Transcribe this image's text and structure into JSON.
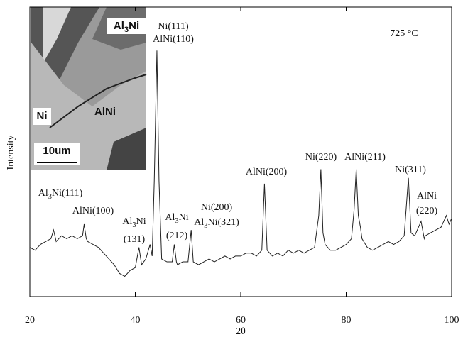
{
  "chart_data": {
    "type": "line",
    "x_label": "2θ",
    "y_label": "Intensity",
    "xlim": [
      20,
      100
    ],
    "xticks": [
      20,
      40,
      60,
      80,
      100
    ],
    "ylim": [
      0,
      100
    ],
    "color": "#222222",
    "annotations": [
      "Al3Ni(111)",
      "AlNi(100)",
      "Al3Ni",
      "(131)",
      "Ni(111)",
      "AlNi(110)",
      "Al3Ni",
      "(212)",
      "Ni(200)",
      "Al3Ni(321)",
      "AlNi(200)",
      "Ni(220)",
      "AlNi(211)",
      "Ni(311)",
      "AlNi",
      "(220)",
      "725 °C"
    ],
    "inset_labels": [
      "Al3Ni",
      "Ni",
      "AlNi",
      "10um"
    ],
    "x": [
      20,
      21,
      22,
      23,
      24,
      24.5,
      25,
      26,
      27,
      28,
      29,
      30,
      30.3,
      30.7,
      31,
      32,
      33,
      34,
      35,
      36,
      37,
      38,
      39,
      40,
      40.7,
      41.2,
      42,
      42.8,
      43.2,
      43.6,
      44.1,
      44.5,
      45,
      46,
      47,
      47.4,
      47.8,
      48,
      49,
      50,
      50.6,
      51,
      52,
      53,
      54,
      55,
      56,
      57,
      58,
      59,
      60,
      61,
      62,
      63,
      64,
      64.5,
      65,
      66,
      67,
      68,
      69,
      70,
      71,
      72,
      73,
      74,
      74.8,
      75.2,
      75.6,
      76,
      77,
      78,
      79,
      80,
      81,
      81.5,
      81.9,
      82.3,
      82.7,
      83,
      84,
      85,
      86,
      87,
      88,
      89,
      90,
      91,
      91.8,
      92.3,
      93,
      94.2,
      94.8,
      95,
      96,
      97,
      98,
      99,
      99.5,
      100
    ],
    "values": [
      17,
      16,
      18,
      19,
      20,
      23,
      19,
      21,
      20,
      21,
      20,
      21,
      25,
      20,
      19,
      18,
      17,
      15,
      13,
      11,
      8,
      7,
      9,
      10,
      17,
      11,
      13,
      18,
      14,
      40,
      85,
      40,
      13,
      12,
      12,
      18,
      12,
      11,
      12,
      12,
      23,
      12,
      11,
      12,
      13,
      12,
      13,
      14,
      13,
      14,
      14,
      15,
      15,
      14,
      16,
      39,
      16,
      14,
      15,
      14,
      16,
      15,
      16,
      15,
      16,
      17,
      28,
      44,
      22,
      18,
      16,
      16,
      17,
      18,
      20,
      30,
      44,
      28,
      24,
      20,
      17,
      16,
      17,
      18,
      19,
      18,
      19,
      21,
      41,
      22,
      21,
      26,
      20,
      21,
      22,
      23,
      24,
      28,
      25,
      27
    ]
  }
}
